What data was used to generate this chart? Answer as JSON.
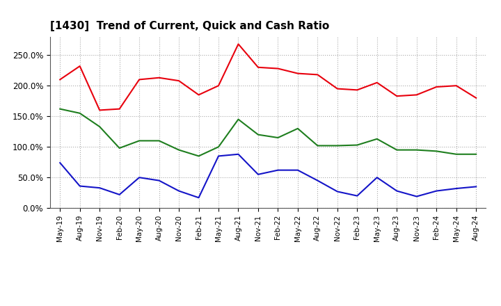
{
  "title": "[1430]  Trend of Current, Quick and Cash Ratio",
  "x_labels": [
    "May-19",
    "Aug-19",
    "Nov-19",
    "Feb-20",
    "May-20",
    "Aug-20",
    "Nov-20",
    "Feb-21",
    "May-21",
    "Aug-21",
    "Nov-21",
    "Feb-22",
    "May-22",
    "Aug-22",
    "Nov-22",
    "Feb-23",
    "May-23",
    "Aug-23",
    "Nov-23",
    "Feb-24",
    "May-24",
    "Aug-24"
  ],
  "current_ratio": [
    210,
    232,
    160,
    162,
    210,
    213,
    208,
    185,
    200,
    268,
    230,
    228,
    220,
    218,
    195,
    193,
    205,
    183,
    185,
    198,
    200,
    180
  ],
  "quick_ratio": [
    162,
    155,
    133,
    98,
    110,
    110,
    95,
    85,
    100,
    145,
    120,
    115,
    130,
    102,
    102,
    103,
    113,
    95,
    95,
    93,
    88,
    88
  ],
  "cash_ratio": [
    74,
    36,
    33,
    22,
    50,
    45,
    28,
    17,
    85,
    88,
    55,
    62,
    62,
    45,
    27,
    20,
    50,
    28,
    19,
    28,
    32,
    35
  ],
  "current_color": "#e8000d",
  "quick_color": "#1e7e1e",
  "cash_color": "#1414c8",
  "ylim": [
    0,
    280
  ],
  "yticks": [
    0,
    50,
    100,
    150,
    200,
    250
  ],
  "background_color": "#ffffff",
  "grid_color": "#aaaaaa"
}
